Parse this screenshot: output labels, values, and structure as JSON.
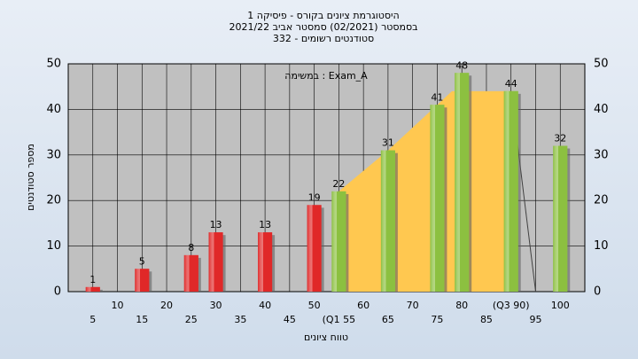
{
  "chart_data": {
    "type": "bar",
    "title": [
      "היסטוגרמת ציונים בקורס - פיסיקה 1",
      "בסמסטר  (02/2021)  סמסטר אביב 2021/22",
      "סטודנטים רשומים - 332"
    ],
    "annotation": "במשימה : Exam_A",
    "x_label": "טווח ציונים",
    "y_label": "מספר סטודנטים",
    "xlim": [
      0,
      105
    ],
    "xticks": [
      5,
      10,
      15,
      20,
      25,
      30,
      35,
      40,
      45,
      50,
      {
        "value": 55,
        "label": "(Q1 55"
      },
      60,
      65,
      70,
      75,
      80,
      85,
      {
        "value": 90,
        "label": "(Q3 90)"
      },
      95,
      100
    ],
    "ylim": [
      0,
      50
    ],
    "yticks": [
      0,
      10,
      20,
      30,
      40,
      50
    ],
    "grid": true,
    "series": [
      {
        "color": "#e02828",
        "x": [
          5,
          15,
          25,
          30,
          40,
          50
        ],
        "values": [
          1,
          5,
          8,
          13,
          13,
          19
        ]
      },
      {
        "color": "#8cc040",
        "x": [
          55,
          65,
          75,
          80,
          90,
          100
        ],
        "values": [
          22,
          31,
          41,
          48,
          44,
          32
        ]
      }
    ],
    "area": {
      "color": "#ffc850",
      "x": [
        55,
        65,
        75,
        78,
        90
      ],
      "values": [
        22,
        31,
        41,
        44,
        44
      ]
    },
    "line": {
      "color": "#404040",
      "x": [
        90,
        95
      ],
      "values": [
        44,
        0
      ]
    }
  }
}
